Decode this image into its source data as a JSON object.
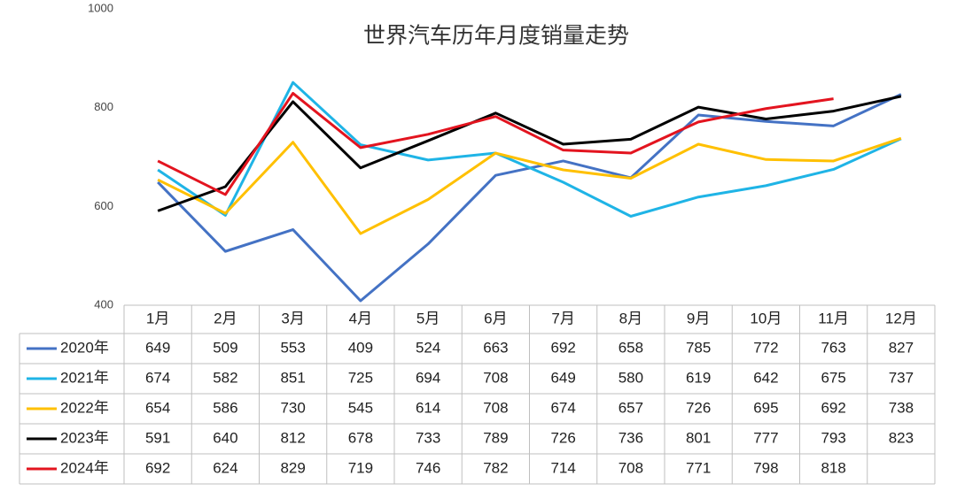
{
  "chart_data": {
    "type": "line",
    "title": "世界汽车历年月度销量走势",
    "categories": [
      "1月",
      "2月",
      "3月",
      "4月",
      "5月",
      "6月",
      "7月",
      "8月",
      "9月",
      "10月",
      "11月",
      "12月"
    ],
    "series": [
      {
        "name": "2020年",
        "color": "#4472c4",
        "values": [
          649,
          509,
          553,
          409,
          524,
          663,
          692,
          658,
          785,
          772,
          763,
          827
        ]
      },
      {
        "name": "2021年",
        "color": "#1fb4e6",
        "values": [
          674,
          582,
          851,
          725,
          694,
          708,
          649,
          580,
          619,
          642,
          675,
          737
        ]
      },
      {
        "name": "2022年",
        "color": "#ffc000",
        "values": [
          654,
          586,
          730,
          545,
          614,
          708,
          674,
          657,
          726,
          695,
          692,
          738
        ]
      },
      {
        "name": "2023年",
        "color": "#000000",
        "values": [
          591,
          640,
          812,
          678,
          733,
          789,
          726,
          736,
          801,
          777,
          793,
          823
        ]
      },
      {
        "name": "2024年",
        "color": "#e3141f",
        "values": [
          692,
          624,
          829,
          719,
          746,
          782,
          714,
          708,
          771,
          798,
          818,
          null
        ]
      }
    ],
    "ylim": [
      400,
      1000
    ],
    "yticks": [
      400,
      600,
      800,
      1000
    ],
    "grid": false
  }
}
